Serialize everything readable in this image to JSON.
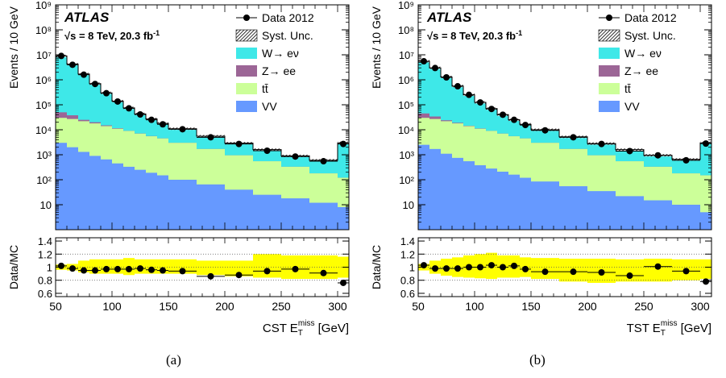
{
  "figure": {
    "captions": [
      "(a)",
      "(b)"
    ]
  },
  "colors": {
    "W_enu": "#3ee8e8",
    "Z_ee": "#9c6696",
    "ttbar": "#ccff99",
    "VV": "#6699ff",
    "band_bottom": "#ffff00",
    "data": "#000000"
  },
  "chart_data": [
    {
      "type": "bar",
      "stacked": true,
      "log_y": true,
      "xlabel_main": "CST E",
      "xlabel_sub": "T",
      "xlabel_sup": "miss",
      "xlabel_unit": "[GeV]",
      "ylabel": "Events / 10 GeV",
      "ratio_ylabel": "Data/MC",
      "atlas_label": "ATLAS",
      "energy_label": "√s = 8 TeV, 20.3 fb",
      "energy_sup": "-1",
      "xlim": [
        50,
        310
      ],
      "ylim": [
        1,
        1000000000
      ],
      "ratio_ylim": [
        0.55,
        1.45
      ],
      "x_ticks": [
        "50",
        "100",
        "150",
        "200",
        "250",
        "300"
      ],
      "x_tick_values": [
        50,
        100,
        150,
        200,
        250,
        300
      ],
      "y_ticks": [
        "10",
        "10²",
        "10³",
        "10⁴",
        "10⁵",
        "10⁶",
        "10⁷",
        "10⁸",
        "10⁹"
      ],
      "y_tick_values": [
        10,
        100,
        1000,
        10000,
        100000,
        1000000,
        10000000,
        100000000,
        1000000000
      ],
      "ratio_ticks": [
        "0.6",
        "0.8",
        "1",
        "1.2",
        "1.4"
      ],
      "ratio_tick_values": [
        0.6,
        0.8,
        1.0,
        1.2,
        1.4
      ],
      "legend": {
        "position": "top-right",
        "entries": [
          "Data 2012",
          "Syst. Unc.",
          "W→ eν",
          "Z→ ee",
          "tt̄",
          "VV"
        ]
      },
      "bin_edges": [
        50,
        60,
        70,
        80,
        90,
        100,
        110,
        120,
        130,
        140,
        150,
        175,
        200,
        225,
        250,
        275,
        300,
        310
      ],
      "series": [
        {
          "name": "VV",
          "values": [
            3000,
            2000,
            1300,
            900,
            650,
            450,
            330,
            250,
            190,
            150,
            100,
            65,
            40,
            25,
            18,
            12,
            8
          ]
        },
        {
          "name": "tt̄",
          "values": [
            30000,
            27000,
            22000,
            18000,
            14000,
            11000,
            9000,
            7000,
            5500,
            4500,
            3000,
            1700,
            950,
            550,
            330,
            180,
            120
          ]
        },
        {
          "name": "Z→ ee",
          "values": [
            50000,
            38000,
            25000,
            20000,
            15000,
            11500,
            9100,
            7100,
            5600,
            4550,
            3010,
            1705,
            952,
            551,
            331,
            181,
            121
          ]
        },
        {
          "name": "W→ eν",
          "values": [
            9000000,
            4200000,
            1700000,
            700000,
            300000,
            140000,
            75000,
            43000,
            27000,
            18000,
            11000,
            5500,
            2900,
            1600,
            900,
            600,
            3000
          ]
        }
      ],
      "data_points": {
        "name": "Data 2012",
        "values": [
          9000000,
          4000000,
          1600000,
          680000,
          290000,
          135000,
          72000,
          41000,
          25000,
          16500,
          10500,
          5000,
          2700,
          1450,
          850,
          550,
          2700
        ]
      },
      "ratio": {
        "values": [
          1.02,
          0.98,
          0.95,
          0.95,
          0.97,
          0.97,
          0.97,
          0.98,
          0.96,
          0.95,
          0.94,
          0.86,
          0.88,
          0.94,
          0.97,
          0.91,
          0.76
        ],
        "band_up": [
          1.04,
          1.05,
          1.1,
          1.12,
          1.12,
          1.12,
          1.14,
          1.12,
          1.12,
          1.12,
          1.12,
          1.1,
          1.1,
          1.2,
          1.18,
          1.18,
          1.16
        ],
        "band_down": [
          0.96,
          0.95,
          0.92,
          0.9,
          0.9,
          0.9,
          0.88,
          0.9,
          0.9,
          0.9,
          0.9,
          0.88,
          0.86,
          0.84,
          0.82,
          0.82,
          0.84
        ]
      }
    },
    {
      "type": "bar",
      "stacked": true,
      "log_y": true,
      "xlabel_main": "TST E",
      "xlabel_sub": "T",
      "xlabel_sup": "miss",
      "xlabel_unit": "[GeV]",
      "ylabel": "Events / 10 GeV",
      "ratio_ylabel": "Data/MC",
      "atlas_label": "ATLAS",
      "energy_label": "√s = 8 TeV, 20.3 fb",
      "energy_sup": "-1",
      "xlim": [
        50,
        310
      ],
      "ylim": [
        1,
        1000000000
      ],
      "ratio_ylim": [
        0.55,
        1.45
      ],
      "x_ticks": [
        "50",
        "100",
        "150",
        "200",
        "250",
        "300"
      ],
      "x_tick_values": [
        50,
        100,
        150,
        200,
        250,
        300
      ],
      "y_ticks": [
        "10",
        "10²",
        "10³",
        "10⁴",
        "10⁵",
        "10⁶",
        "10⁷",
        "10⁸",
        "10⁹"
      ],
      "y_tick_values": [
        10,
        100,
        1000,
        10000,
        100000,
        1000000,
        10000000,
        100000000,
        1000000000
      ],
      "ratio_ticks": [
        "0.6",
        "0.8",
        "1",
        "1.2",
        "1.4"
      ],
      "ratio_tick_values": [
        0.6,
        0.8,
        1.0,
        1.2,
        1.4
      ],
      "legend": {
        "position": "top-right",
        "entries": [
          "Data 2012",
          "Syst. Unc.",
          "W→ eν",
          "Z→ ee",
          "tt̄",
          "VV"
        ]
      },
      "bin_edges": [
        50,
        60,
        70,
        80,
        90,
        100,
        110,
        120,
        130,
        140,
        150,
        175,
        200,
        225,
        250,
        275,
        300,
        310
      ],
      "series": [
        {
          "name": "VV",
          "values": [
            2500,
            1700,
            1100,
            750,
            550,
            380,
            280,
            210,
            160,
            120,
            85,
            55,
            35,
            22,
            15,
            10,
            5
          ]
        },
        {
          "name": "tt̄",
          "values": [
            30000,
            27000,
            22000,
            18000,
            14000,
            11000,
            9000,
            7000,
            5500,
            4500,
            3000,
            1700,
            950,
            550,
            330,
            180,
            150
          ]
        },
        {
          "name": "Z→ ee",
          "values": [
            45000,
            34000,
            24000,
            19000,
            14500,
            11300,
            9050,
            7050,
            5550,
            4520,
            3005,
            1702,
            951,
            551,
            331,
            181,
            151
          ]
        },
        {
          "name": "W→ eν",
          "values": [
            5500000,
            3000000,
            1300000,
            560000,
            250000,
            125000,
            70000,
            40000,
            25000,
            16500,
            10000,
            5200,
            2800,
            1600,
            950,
            650,
            3000
          ]
        }
      ],
      "data_points": {
        "name": "Data 2012",
        "values": [
          5500000,
          2950000,
          1250000,
          550000,
          250000,
          124000,
          68000,
          40000,
          25000,
          15500,
          9500,
          5000,
          2700,
          1400,
          950,
          600,
          2800
        ]
      },
      "ratio": {
        "values": [
          1.03,
          0.98,
          0.98,
          0.98,
          1.0,
          1.0,
          1.03,
          1.0,
          1.02,
          0.97,
          0.93,
          0.93,
          0.92,
          0.87,
          1.01,
          0.94,
          0.78
        ],
        "band_up": [
          1.05,
          1.1,
          1.13,
          1.15,
          1.18,
          1.2,
          1.22,
          1.18,
          1.18,
          1.15,
          1.14,
          1.13,
          1.13,
          1.12,
          1.13,
          1.12,
          1.12
        ],
        "band_down": [
          0.95,
          0.9,
          0.87,
          0.85,
          0.84,
          0.83,
          0.82,
          0.84,
          0.84,
          0.85,
          0.82,
          0.78,
          0.76,
          0.78,
          0.78,
          0.8,
          0.82
        ]
      }
    }
  ]
}
